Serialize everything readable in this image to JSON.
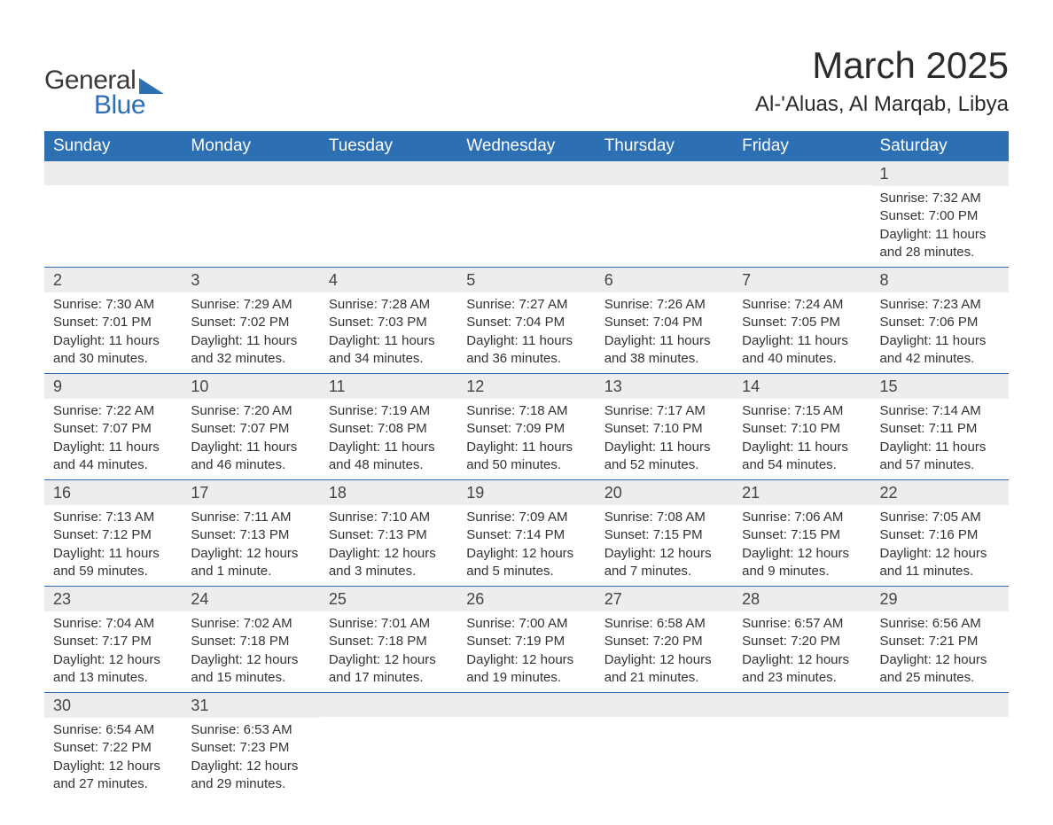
{
  "logo": {
    "text1": "General",
    "text2": "Blue"
  },
  "title": "March 2025",
  "location": "Al-'Aluas, Al Marqab, Libya",
  "styling": {
    "header_bg": "#2d6fb3",
    "header_text_color": "#ffffff",
    "daynum_bg": "#ededed",
    "daynum_color": "#444444",
    "body_text_color": "#333333",
    "row_border_color": "#2d6fb3",
    "page_bg": "#ffffff",
    "month_title_fontsize": 42,
    "location_fontsize": 24,
    "header_fontsize": 19,
    "daynum_fontsize": 18,
    "body_fontsize": 15,
    "columns": 7
  },
  "weekdays": [
    "Sunday",
    "Monday",
    "Tuesday",
    "Wednesday",
    "Thursday",
    "Friday",
    "Saturday"
  ],
  "leading_blanks": 6,
  "days": [
    {
      "n": 1,
      "sunrise": "7:32 AM",
      "sunset": "7:00 PM",
      "dl_h": 11,
      "dl_m": 28
    },
    {
      "n": 2,
      "sunrise": "7:30 AM",
      "sunset": "7:01 PM",
      "dl_h": 11,
      "dl_m": 30
    },
    {
      "n": 3,
      "sunrise": "7:29 AM",
      "sunset": "7:02 PM",
      "dl_h": 11,
      "dl_m": 32
    },
    {
      "n": 4,
      "sunrise": "7:28 AM",
      "sunset": "7:03 PM",
      "dl_h": 11,
      "dl_m": 34
    },
    {
      "n": 5,
      "sunrise": "7:27 AM",
      "sunset": "7:04 PM",
      "dl_h": 11,
      "dl_m": 36
    },
    {
      "n": 6,
      "sunrise": "7:26 AM",
      "sunset": "7:04 PM",
      "dl_h": 11,
      "dl_m": 38
    },
    {
      "n": 7,
      "sunrise": "7:24 AM",
      "sunset": "7:05 PM",
      "dl_h": 11,
      "dl_m": 40
    },
    {
      "n": 8,
      "sunrise": "7:23 AM",
      "sunset": "7:06 PM",
      "dl_h": 11,
      "dl_m": 42
    },
    {
      "n": 9,
      "sunrise": "7:22 AM",
      "sunset": "7:07 PM",
      "dl_h": 11,
      "dl_m": 44
    },
    {
      "n": 10,
      "sunrise": "7:20 AM",
      "sunset": "7:07 PM",
      "dl_h": 11,
      "dl_m": 46
    },
    {
      "n": 11,
      "sunrise": "7:19 AM",
      "sunset": "7:08 PM",
      "dl_h": 11,
      "dl_m": 48
    },
    {
      "n": 12,
      "sunrise": "7:18 AM",
      "sunset": "7:09 PM",
      "dl_h": 11,
      "dl_m": 50
    },
    {
      "n": 13,
      "sunrise": "7:17 AM",
      "sunset": "7:10 PM",
      "dl_h": 11,
      "dl_m": 52
    },
    {
      "n": 14,
      "sunrise": "7:15 AM",
      "sunset": "7:10 PM",
      "dl_h": 11,
      "dl_m": 54
    },
    {
      "n": 15,
      "sunrise": "7:14 AM",
      "sunset": "7:11 PM",
      "dl_h": 11,
      "dl_m": 57
    },
    {
      "n": 16,
      "sunrise": "7:13 AM",
      "sunset": "7:12 PM",
      "dl_h": 11,
      "dl_m": 59
    },
    {
      "n": 17,
      "sunrise": "7:11 AM",
      "sunset": "7:13 PM",
      "dl_h": 12,
      "dl_m": 1
    },
    {
      "n": 18,
      "sunrise": "7:10 AM",
      "sunset": "7:13 PM",
      "dl_h": 12,
      "dl_m": 3
    },
    {
      "n": 19,
      "sunrise": "7:09 AM",
      "sunset": "7:14 PM",
      "dl_h": 12,
      "dl_m": 5
    },
    {
      "n": 20,
      "sunrise": "7:08 AM",
      "sunset": "7:15 PM",
      "dl_h": 12,
      "dl_m": 7
    },
    {
      "n": 21,
      "sunrise": "7:06 AM",
      "sunset": "7:15 PM",
      "dl_h": 12,
      "dl_m": 9
    },
    {
      "n": 22,
      "sunrise": "7:05 AM",
      "sunset": "7:16 PM",
      "dl_h": 12,
      "dl_m": 11
    },
    {
      "n": 23,
      "sunrise": "7:04 AM",
      "sunset": "7:17 PM",
      "dl_h": 12,
      "dl_m": 13
    },
    {
      "n": 24,
      "sunrise": "7:02 AM",
      "sunset": "7:18 PM",
      "dl_h": 12,
      "dl_m": 15
    },
    {
      "n": 25,
      "sunrise": "7:01 AM",
      "sunset": "7:18 PM",
      "dl_h": 12,
      "dl_m": 17
    },
    {
      "n": 26,
      "sunrise": "7:00 AM",
      "sunset": "7:19 PM",
      "dl_h": 12,
      "dl_m": 19
    },
    {
      "n": 27,
      "sunrise": "6:58 AM",
      "sunset": "7:20 PM",
      "dl_h": 12,
      "dl_m": 21
    },
    {
      "n": 28,
      "sunrise": "6:57 AM",
      "sunset": "7:20 PM",
      "dl_h": 12,
      "dl_m": 23
    },
    {
      "n": 29,
      "sunrise": "6:56 AM",
      "sunset": "7:21 PM",
      "dl_h": 12,
      "dl_m": 25
    },
    {
      "n": 30,
      "sunrise": "6:54 AM",
      "sunset": "7:22 PM",
      "dl_h": 12,
      "dl_m": 27
    },
    {
      "n": 31,
      "sunrise": "6:53 AM",
      "sunset": "7:23 PM",
      "dl_h": 12,
      "dl_m": 29
    }
  ],
  "labels": {
    "sunrise": "Sunrise:",
    "sunset": "Sunset:",
    "daylight": "Daylight:",
    "hours": "hours",
    "and": "and",
    "minute": "minute.",
    "minutes": "minutes."
  }
}
